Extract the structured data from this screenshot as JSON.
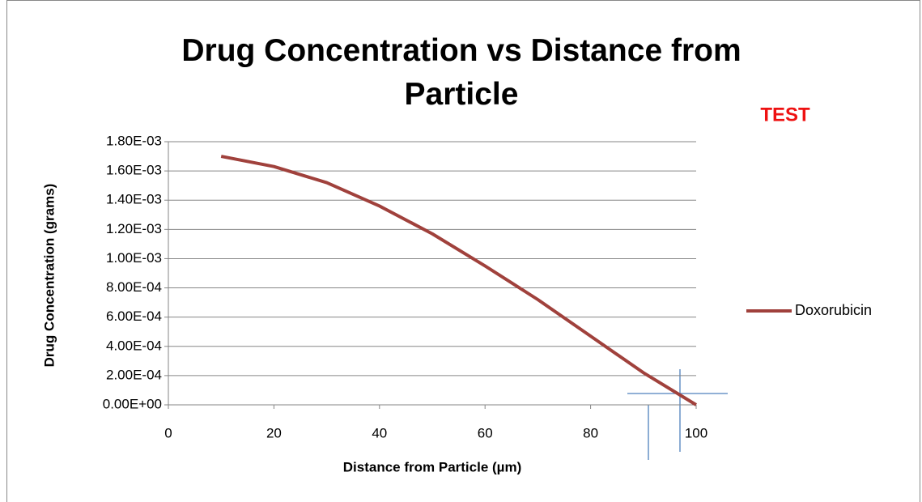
{
  "chart_data": {
    "type": "line",
    "title": "Drug Concentration vs Distance from Particle",
    "annotation": "TEST",
    "x_label": "Distance from Particle (µm)",
    "y_label": "Drug Concentration (grams)",
    "x": [
      10,
      20,
      30,
      40,
      50,
      60,
      70,
      80,
      90,
      100
    ],
    "series": [
      {
        "name": "Doxorubicin",
        "color": "#a0413c",
        "values": [
          0.0017,
          0.00163,
          0.00152,
          0.00136,
          0.00117,
          0.00095,
          0.00072,
          0.00047,
          0.00022,
          0.0
        ]
      }
    ],
    "xlim": [
      0,
      100
    ],
    "xticks": [
      0,
      20,
      40,
      60,
      80,
      100
    ],
    "ylim": [
      0,
      0.0018
    ],
    "yticks": [
      {
        "value": 0,
        "label": "0.00E+00"
      },
      {
        "value": 0.0002,
        "label": "2.00E-04"
      },
      {
        "value": 0.0004,
        "label": "4.00E-04"
      },
      {
        "value": 0.0006,
        "label": "6.00E-04"
      },
      {
        "value": 0.0008,
        "label": "8.00E-04"
      },
      {
        "value": 0.001,
        "label": "1.00E-03"
      },
      {
        "value": 0.0012,
        "label": "1.20E-03"
      },
      {
        "value": 0.0014,
        "label": "1.40E-03"
      },
      {
        "value": 0.0016,
        "label": "1.60E-03"
      },
      {
        "value": 0.0018,
        "label": "1.80E-03"
      }
    ],
    "grid": true,
    "legend": "right"
  }
}
